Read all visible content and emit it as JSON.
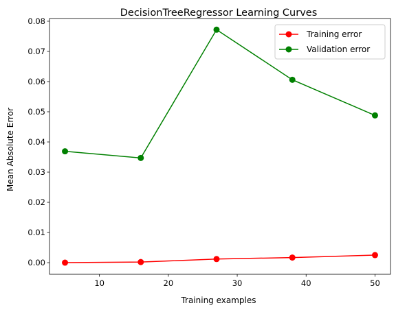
{
  "chart_data": {
    "type": "line",
    "title": "DecisionTreeRegressor Learning Curves",
    "xlabel": "Training examples",
    "ylabel": "Mean Absolute Error",
    "x": [
      5,
      16,
      27,
      38,
      50
    ],
    "xlim": [
      2.75,
      52.25
    ],
    "ylim": [
      -0.00385,
      0.0809
    ],
    "xticks": [
      10,
      20,
      30,
      40,
      50
    ],
    "yticks": [
      0.0,
      0.01,
      0.02,
      0.03,
      0.04,
      0.05,
      0.06,
      0.07,
      0.08
    ],
    "ytick_labels": [
      "0.00",
      "0.01",
      "0.02",
      "0.03",
      "0.04",
      "0.05",
      "0.06",
      "0.07",
      "0.08"
    ],
    "grid": false,
    "legend_position": "top-right",
    "series": [
      {
        "name": "Training error",
        "color": "#ff0000",
        "marker": "circle",
        "values": [
          0.0,
          0.0002,
          0.0012,
          0.0017,
          0.0025
        ]
      },
      {
        "name": "Validation error",
        "color": "#008000",
        "marker": "circle",
        "values": [
          0.0369,
          0.0347,
          0.0772,
          0.0606,
          0.0488
        ]
      }
    ]
  }
}
